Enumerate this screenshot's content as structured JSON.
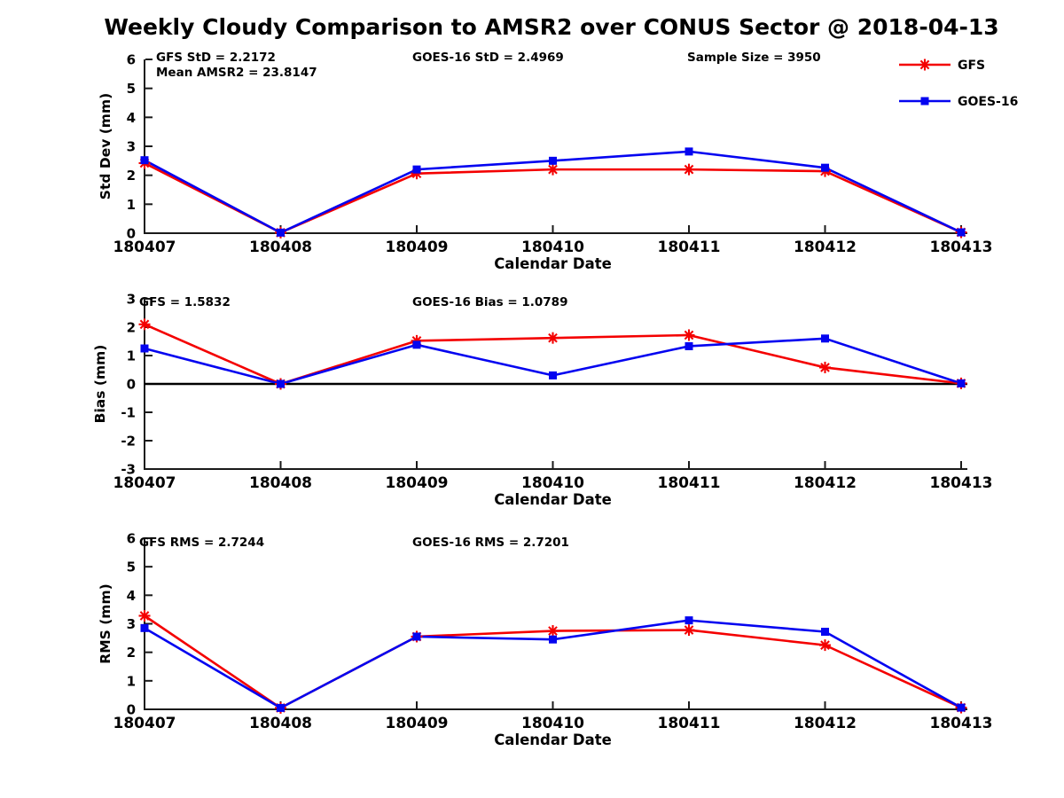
{
  "title": "Weekly Cloudy Comparison to AMSR2 over CONUS Sector @ 2018-04-13",
  "colors": {
    "gfs": "#f40000",
    "goes16": "#0404f0",
    "axis": "#1a1a1a",
    "zero_line": "#000000",
    "text": "#000000"
  },
  "legend": {
    "items": [
      {
        "label": "GFS",
        "key": "gfs",
        "marker": "asterisk"
      },
      {
        "label": "GOES-16",
        "key": "goes16",
        "marker": "square"
      }
    ]
  },
  "chart_data": [
    {
      "id": "std-dev",
      "type": "line",
      "ylabel": "Std Dev (mm)",
      "xlabel": "Calendar Date",
      "ylim": [
        0,
        6
      ],
      "yticks": [
        0,
        1,
        2,
        3,
        4,
        5,
        6
      ],
      "categories": [
        "180407",
        "180408",
        "180409",
        "180410",
        "180411",
        "180412",
        "180413"
      ],
      "annotations": [
        "GFS StD = 2.2172",
        "Mean AMSR2 = 23.8147",
        "GOES-16 StD = 2.4969",
        "Sample Size = 3950"
      ],
      "zero_line": false,
      "series": [
        {
          "name": "GFS",
          "key": "gfs",
          "marker": "asterisk",
          "values": [
            2.42,
            0.02,
            2.06,
            2.2,
            2.2,
            2.14,
            0.03
          ]
        },
        {
          "name": "GOES-16",
          "key": "goes16",
          "marker": "square",
          "values": [
            2.52,
            0.02,
            2.2,
            2.5,
            2.82,
            2.26,
            0.03
          ]
        }
      ]
    },
    {
      "id": "bias",
      "type": "line",
      "ylabel": "Bias (mm)",
      "xlabel": "Calendar Date",
      "ylim": [
        -3,
        3
      ],
      "yticks": [
        -3,
        -2,
        -1,
        0,
        1,
        2,
        3
      ],
      "categories": [
        "180407",
        "180408",
        "180409",
        "180410",
        "180411",
        "180412",
        "180413"
      ],
      "annotations": [
        "GFS = 1.5832",
        "GOES-16 Bias  = 1.0789"
      ],
      "zero_line": true,
      "series": [
        {
          "name": "GFS",
          "key": "gfs",
          "marker": "asterisk",
          "values": [
            2.1,
            0.0,
            1.52,
            1.62,
            1.72,
            0.58,
            0.02
          ]
        },
        {
          "name": "GOES-16",
          "key": "goes16",
          "marker": "square",
          "values": [
            1.25,
            0.0,
            1.38,
            0.3,
            1.33,
            1.6,
            0.02
          ]
        }
      ]
    },
    {
      "id": "rms",
      "type": "line",
      "ylabel": "RMS (mm)",
      "xlabel": "Calendar Date",
      "ylim": [
        0,
        6
      ],
      "yticks": [
        0,
        1,
        2,
        3,
        4,
        5,
        6
      ],
      "categories": [
        "180407",
        "180408",
        "180409",
        "180410",
        "180411",
        "180412",
        "180413"
      ],
      "annotations": [
        "GFS RMS = 2.7244",
        "GOES-16 RMS = 2.7201"
      ],
      "zero_line": false,
      "series": [
        {
          "name": "GFS",
          "key": "gfs",
          "marker": "asterisk",
          "values": [
            3.28,
            0.05,
            2.55,
            2.75,
            2.78,
            2.25,
            0.06
          ]
        },
        {
          "name": "GOES-16",
          "key": "goes16",
          "marker": "square",
          "values": [
            2.85,
            0.05,
            2.55,
            2.45,
            3.12,
            2.72,
            0.06
          ]
        }
      ]
    }
  ]
}
